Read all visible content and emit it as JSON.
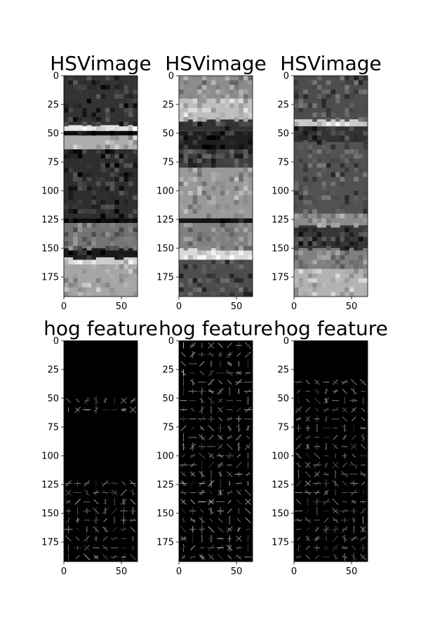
{
  "figure": {
    "background": "#ffffff"
  },
  "chart_data": [
    {
      "type": "heatmap",
      "title": "HSVimage",
      "colormap": "gray",
      "image_shape": [
        192,
        64
      ],
      "xlim": [
        0,
        64
      ],
      "ylim": [
        192,
        0
      ],
      "xticks": [
        0,
        50
      ],
      "yticks": [
        0,
        25,
        50,
        75,
        100,
        125,
        150,
        175
      ],
      "bands": [
        {
          "rows": [
            0,
            43
          ],
          "level": 0.2
        },
        {
          "rows": [
            43,
            48
          ],
          "level": 0.9
        },
        {
          "rows": [
            48,
            52
          ],
          "level": 0.05
        },
        {
          "rows": [
            52,
            64
          ],
          "level": 0.68
        },
        {
          "rows": [
            64,
            124
          ],
          "level": 0.18
        },
        {
          "rows": [
            124,
            128
          ],
          "level": 0.05
        },
        {
          "rows": [
            128,
            150
          ],
          "level": 0.45
        },
        {
          "rows": [
            150,
            158
          ],
          "level": 0.1
        },
        {
          "rows": [
            158,
            164
          ],
          "level": 0.8
        },
        {
          "rows": [
            164,
            192
          ],
          "level": 0.65
        }
      ]
    },
    {
      "type": "heatmap",
      "title": "HSVimage",
      "colormap": "gray",
      "image_shape": [
        192,
        64
      ],
      "xlim": [
        0,
        64
      ],
      "ylim": [
        192,
        0
      ],
      "xticks": [
        0,
        50
      ],
      "yticks": [
        0,
        25,
        50,
        75,
        100,
        125,
        150,
        175
      ],
      "bands": [
        {
          "rows": [
            0,
            20
          ],
          "level": 0.55
        },
        {
          "rows": [
            20,
            38
          ],
          "level": 0.75
        },
        {
          "rows": [
            38,
            48
          ],
          "level": 0.2
        },
        {
          "rows": [
            48,
            64
          ],
          "level": 0.12
        },
        {
          "rows": [
            64,
            80
          ],
          "level": 0.25
        },
        {
          "rows": [
            80,
            124
          ],
          "level": 0.6
        },
        {
          "rows": [
            124,
            128
          ],
          "level": 0.08
        },
        {
          "rows": [
            128,
            150
          ],
          "level": 0.5
        },
        {
          "rows": [
            150,
            160
          ],
          "level": 0.85
        },
        {
          "rows": [
            160,
            192
          ],
          "level": 0.3
        }
      ]
    },
    {
      "type": "heatmap",
      "title": "HSVimage",
      "colormap": "gray",
      "image_shape": [
        192,
        64
      ],
      "xlim": [
        0,
        64
      ],
      "ylim": [
        192,
        0
      ],
      "xticks": [
        0,
        50
      ],
      "yticks": [
        0,
        25,
        50,
        75,
        100,
        125,
        150,
        175
      ],
      "bands": [
        {
          "rows": [
            0,
            38
          ],
          "level": 0.3
        },
        {
          "rows": [
            38,
            44
          ],
          "level": 0.8
        },
        {
          "rows": [
            44,
            58
          ],
          "level": 0.2
        },
        {
          "rows": [
            58,
            120
          ],
          "level": 0.32
        },
        {
          "rows": [
            120,
            130
          ],
          "level": 0.55
        },
        {
          "rows": [
            130,
            150
          ],
          "level": 0.22
        },
        {
          "rows": [
            150,
            168
          ],
          "level": 0.5
        },
        {
          "rows": [
            168,
            192
          ],
          "level": 0.7
        }
      ]
    },
    {
      "type": "heatmap",
      "title": "hog feature",
      "colormap": "gray",
      "image_shape": [
        192,
        64
      ],
      "xlim": [
        0,
        64
      ],
      "ylim": [
        192,
        0
      ],
      "xticks": [
        0,
        50
      ],
      "yticks": [
        0,
        25,
        50,
        75,
        100,
        125,
        150,
        175
      ],
      "active_rows": [
        [
          45,
          65
        ],
        [
          120,
          192
        ]
      ],
      "level": 0.55
    },
    {
      "type": "heatmap",
      "title": "hog feature",
      "colormap": "gray",
      "image_shape": [
        192,
        64
      ],
      "xlim": [
        0,
        64
      ],
      "ylim": [
        192,
        0
      ],
      "xticks": [
        0,
        50
      ],
      "yticks": [
        0,
        25,
        50,
        75,
        100,
        125,
        150,
        175
      ],
      "active_rows": [
        [
          0,
          192
        ]
      ],
      "level": 0.6
    },
    {
      "type": "heatmap",
      "title": "hog feature",
      "colormap": "gray",
      "image_shape": [
        192,
        64
      ],
      "xlim": [
        0,
        64
      ],
      "ylim": [
        192,
        0
      ],
      "xticks": [
        0,
        50
      ],
      "yticks": [
        0,
        25,
        50,
        75,
        100,
        125,
        150,
        175
      ],
      "active_rows": [
        [
          35,
          192
        ]
      ],
      "level": 0.5
    }
  ]
}
